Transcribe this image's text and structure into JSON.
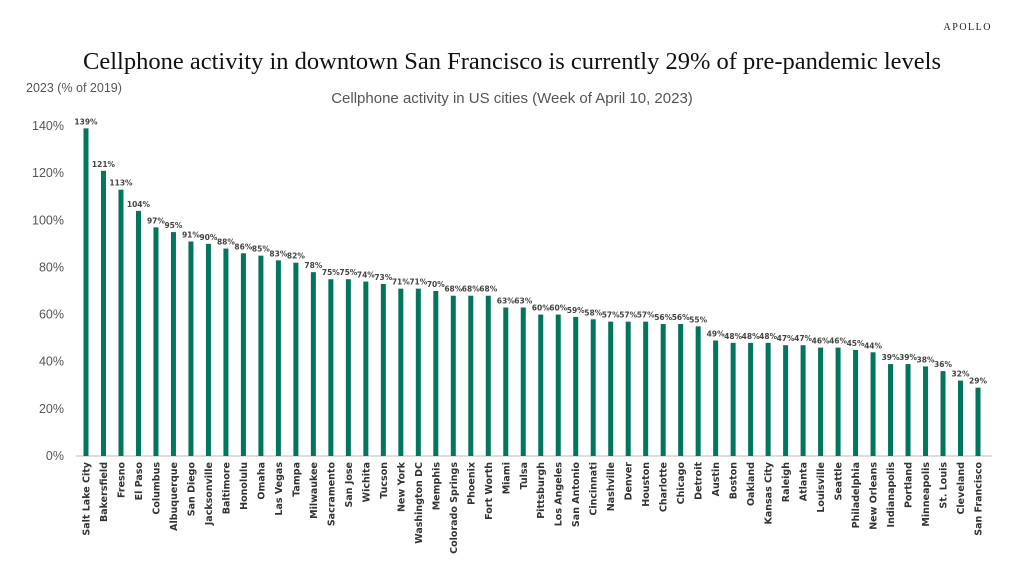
{
  "brand": "APOLLO",
  "chart_data": {
    "type": "bar",
    "title": "Cellphone activity in downtown San Francisco is currently 29% of pre-pandemic levels",
    "subtitle": "Cellphone activity in US cities (Week of April 10, 2023)",
    "ylabel": "2023 (% of 2019)",
    "xlabel": "",
    "ylim": [
      0,
      140
    ],
    "yticks": [
      0,
      20,
      40,
      60,
      80,
      100,
      120,
      140
    ],
    "ytick_suffix": "%",
    "grid": false,
    "bar_color": "#00775c",
    "categories": [
      "Salt Lake City",
      "Bakersfield",
      "Fresno",
      "El Paso",
      "Columbus",
      "Albuquerque",
      "San Diego",
      "Jacksonville",
      "Baltimore",
      "Honolulu",
      "Omaha",
      "Las Vegas",
      "Tampa",
      "Milwaukee",
      "Sacramento",
      "San Jose",
      "Wichita",
      "Tucson",
      "New York",
      "Washington DC",
      "Memphis",
      "Colorado Springs",
      "Phoenix",
      "Fort Worth",
      "Miami",
      "Tulsa",
      "Pittsburgh",
      "Los Angeles",
      "San Antonio",
      "Cincinnati",
      "Nashville",
      "Denver",
      "Houston",
      "Charlotte",
      "Chicago",
      "Detroit",
      "Austin",
      "Boston",
      "Oakland",
      "Kansas City",
      "Raleigh",
      "Atlanta",
      "Louisville",
      "Seattle",
      "Philadelphia",
      "New Orleans",
      "Indianapolis",
      "Portland",
      "Minneapolis",
      "St. Louis",
      "Cleveland",
      "San Francisco"
    ],
    "values": [
      139,
      121,
      113,
      104,
      97,
      95,
      91,
      90,
      88,
      86,
      85,
      83,
      82,
      78,
      75,
      75,
      74,
      73,
      71,
      71,
      70,
      68,
      68,
      68,
      63,
      63,
      60,
      60,
      59,
      58,
      57,
      57,
      57,
      56,
      56,
      55,
      49,
      48,
      48,
      48,
      47,
      47,
      46,
      46,
      45,
      44,
      39,
      39,
      38,
      36,
      32,
      29
    ]
  }
}
